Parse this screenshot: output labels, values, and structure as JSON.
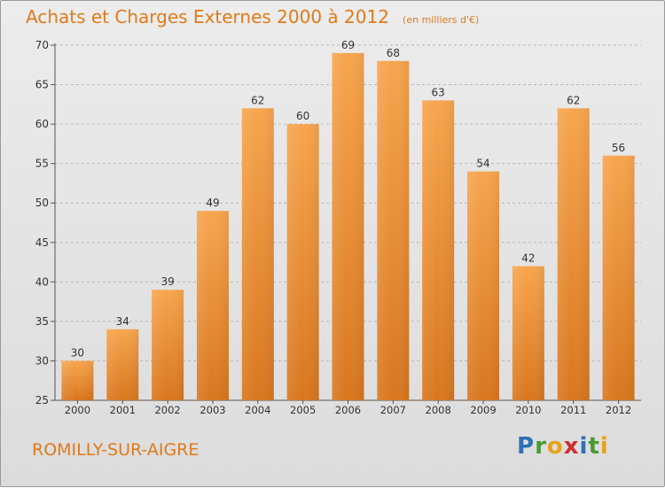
{
  "title": "Achats et Charges Externes 2000 à 2012",
  "subtitle": "(en milliers d'€)",
  "location": "ROMILLY-SUR-AIGRE",
  "logo": {
    "text": "Proxiti",
    "letters": [
      {
        "ch": "P",
        "color": "#2f6fb5"
      },
      {
        "ch": "r",
        "color": "#4a9a34"
      },
      {
        "ch": "o",
        "color": "#e8a21a"
      },
      {
        "ch": "x",
        "color": "#cf2e2e"
      },
      {
        "ch": "i",
        "color": "#2f6fb5"
      },
      {
        "ch": "t",
        "color": "#4a9a34"
      },
      {
        "ch": "i",
        "color": "#e8a21a"
      }
    ]
  },
  "colors": {
    "bar_light": "#f7a54e",
    "bar_dark": "#d8771f",
    "title": "#e07a1a",
    "grid": "#b7b7b7"
  },
  "chart_data": {
    "type": "bar",
    "title": "Achats et Charges Externes 2000 à 2012",
    "subtitle": "(en milliers d'€)",
    "categories": [
      "2000",
      "2001",
      "2002",
      "2003",
      "2004",
      "2005",
      "2006",
      "2007",
      "2008",
      "2009",
      "2010",
      "2011",
      "2012"
    ],
    "values": [
      30,
      34,
      39,
      49,
      62,
      60,
      69,
      68,
      63,
      54,
      42,
      62,
      56
    ],
    "ylim": [
      25,
      70
    ],
    "yticks": [
      25,
      30,
      35,
      40,
      45,
      50,
      55,
      60,
      65,
      70
    ],
    "grid": "horizontal dashed",
    "legend": "none",
    "data_labels": true
  }
}
